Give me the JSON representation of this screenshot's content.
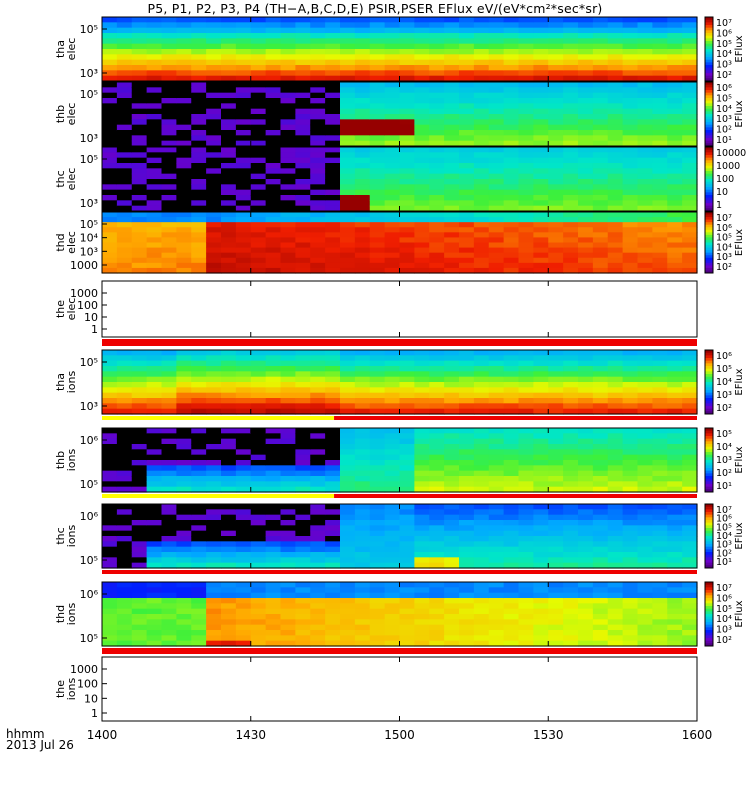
{
  "title": "P5, P1, P2, P3, P4 (TH−A,B,C,D,E) PSIR,PSER EFlux eV/(eV*cm²*sec*sr)",
  "time_axis": {
    "ticks": [
      "1400",
      "1430",
      "1500",
      "1530",
      "1600"
    ],
    "label_line1": "hhmm",
    "label_line2": "2013 Jul 26"
  },
  "chart_data": [
    {
      "type": "heatmap",
      "panel": "tha-elec",
      "ylabel": [
        "tha",
        "elec"
      ],
      "yticks": [
        "10⁵",
        "10³"
      ],
      "colorbar_label": "EFlux",
      "colorbar_ticks": [
        "10⁷",
        "10⁶",
        "10⁵",
        "10⁴",
        "10³",
        "10²"
      ],
      "data_gap_until": null,
      "mode_bar": false
    },
    {
      "type": "heatmap",
      "panel": "thb-elec",
      "ylabel": [
        "thb",
        "elec"
      ],
      "yticks": [
        "10⁵",
        "10³"
      ],
      "colorbar_label": "EFlux",
      "colorbar_ticks": [
        "10⁶",
        "10⁵",
        "10⁴",
        "10³",
        "10²",
        "10¹"
      ],
      "data_gap_until": "1453",
      "mode_bar": false
    },
    {
      "type": "heatmap",
      "panel": "thc-elec",
      "ylabel": [
        "thc",
        "elec"
      ],
      "yticks": [
        "10⁵",
        "10³"
      ],
      "colorbar_label": "",
      "colorbar_ticks": [
        "10000",
        "1000",
        "100",
        "10",
        "1"
      ],
      "data_gap_until": "1453",
      "mode_bar": false
    },
    {
      "type": "heatmap",
      "panel": "thd-elec",
      "ylabel": [
        "thd",
        "elec"
      ],
      "yticks": [
        "10⁵",
        "10⁴",
        "10³",
        "1000"
      ],
      "colorbar_label": "EFlux",
      "colorbar_ticks": [
        "10⁷",
        "10⁶",
        "10⁵",
        "10⁴",
        "10³",
        "10²"
      ],
      "data_gap_until": null,
      "mode_bar": false
    },
    {
      "type": "heatmap",
      "panel": "the-elec",
      "ylabel": [
        "the",
        "elec"
      ],
      "yticks": [
        "1000",
        "100",
        "10",
        "1"
      ],
      "colorbar_label": "",
      "colorbar_ticks": [],
      "data_gap_until": null,
      "empty": true,
      "mode_bar": "red"
    },
    {
      "type": "heatmap",
      "panel": "tha-ions",
      "ylabel": [
        "tha",
        "ions"
      ],
      "yticks": [
        "10⁵",
        "10³"
      ],
      "colorbar_label": "EFlux",
      "colorbar_ticks": [
        "10⁶",
        "10⁵",
        "10⁴",
        "10³",
        "10²"
      ],
      "data_gap_until": null,
      "mode_bar": "yellow-red"
    },
    {
      "type": "heatmap",
      "panel": "thb-ions",
      "ylabel": [
        "thb",
        "ions"
      ],
      "yticks": [
        "10⁶",
        "10⁵"
      ],
      "colorbar_label": "EFlux",
      "colorbar_ticks": [
        "10⁵",
        "10⁴",
        "10³",
        "10²",
        "10¹"
      ],
      "data_gap_until": "1453",
      "mode_bar": "yellow-red"
    },
    {
      "type": "heatmap",
      "panel": "thc-ions",
      "ylabel": [
        "thc",
        "ions"
      ],
      "yticks": [
        "10⁶",
        "10⁵"
      ],
      "colorbar_label": "EFlux",
      "colorbar_ticks": [
        "10⁷",
        "10⁶",
        "10⁵",
        "10⁴",
        "10³",
        "10²",
        "10¹"
      ],
      "data_gap_until": "1453",
      "mode_bar": "red"
    },
    {
      "type": "heatmap",
      "panel": "thd-ions",
      "ylabel": [
        "thd",
        "ions"
      ],
      "yticks": [
        "10⁶",
        "10⁵"
      ],
      "colorbar_label": "EFlux",
      "colorbar_ticks": [
        "10⁷",
        "10⁶",
        "10⁵",
        "10⁴",
        "10³",
        "10²"
      ],
      "data_gap_until": null,
      "mode_bar": "red"
    },
    {
      "type": "heatmap",
      "panel": "the-ions",
      "ylabel": [
        "the",
        "ions"
      ],
      "yticks": [
        "1000",
        "100",
        "10",
        "1"
      ],
      "colorbar_label": "",
      "colorbar_ticks": [],
      "data_gap_until": null,
      "empty": true,
      "mode_bar": false
    }
  ],
  "colors": {
    "red": "#ee0000",
    "yellow": "#ffff00",
    "dark_red": "#8b0000",
    "gap_black": "#000000"
  }
}
